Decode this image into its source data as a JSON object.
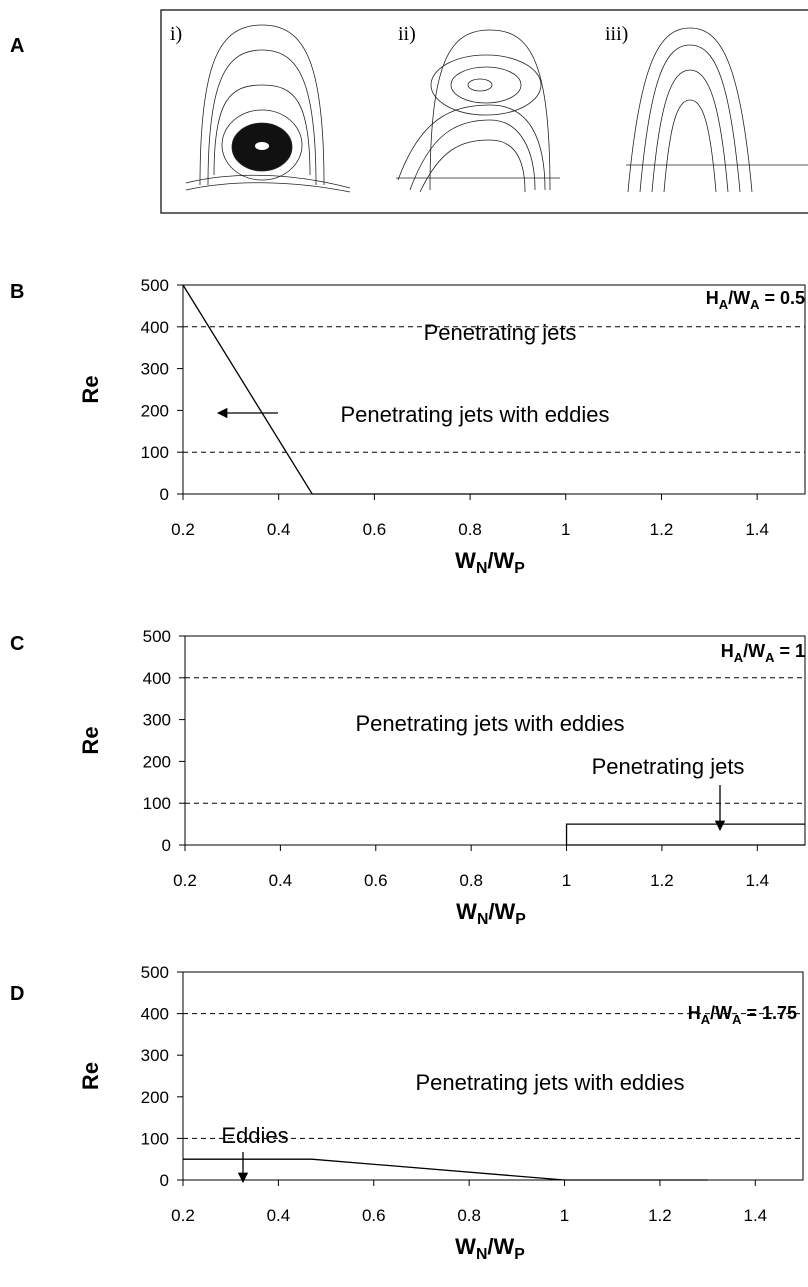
{
  "panel_a": {
    "label": "A",
    "images": [
      "i)",
      "ii)",
      "iii)"
    ]
  },
  "chart_data": [
    {
      "type": "line",
      "panel": "B",
      "title": [
        "H",
        "A",
        "/W",
        "A",
        " = 0.5"
      ],
      "xlabel": [
        "W",
        "N",
        "/W",
        "P"
      ],
      "ylabel": "Re",
      "xlim": [
        0.2,
        1.5
      ],
      "ylim": [
        0,
        500
      ],
      "xticks": [
        0.2,
        0.4,
        0.6,
        0.8,
        1,
        1.2,
        1.4
      ],
      "yticks": [
        0,
        100,
        200,
        300,
        400,
        500
      ],
      "reference_lines": [
        100,
        400
      ],
      "series": [
        {
          "color": "#000000",
          "x": [
            0.2,
            0.47,
            1.0
          ],
          "values": [
            500,
            0,
            0
          ]
        }
      ],
      "annotations": [
        "Penetrating jets",
        "Penetrating jets with eddies"
      ]
    },
    {
      "type": "line",
      "panel": "C",
      "title": [
        "H",
        "A",
        "/W",
        "A",
        " = 1"
      ],
      "xlabel": [
        "W",
        "N",
        "/W",
        "P"
      ],
      "ylabel": "Re",
      "xlim": [
        0.2,
        1.5
      ],
      "ylim": [
        0,
        500
      ],
      "xticks": [
        0.2,
        0.4,
        0.6,
        0.8,
        1,
        1.2,
        1.4
      ],
      "yticks": [
        0,
        100,
        200,
        300,
        400,
        500
      ],
      "reference_lines": [
        100,
        400
      ],
      "series": [
        {
          "color": "#000000",
          "x": [
            1.0,
            1.0,
            1.5
          ],
          "values": [
            0,
            50,
            50
          ]
        },
        {
          "color": "#000000",
          "x": [
            1.0,
            1.5
          ],
          "values": [
            0,
            0
          ]
        }
      ],
      "annotations": [
        "Penetrating jets with eddies",
        "Penetrating jets"
      ]
    },
    {
      "type": "line",
      "panel": "D",
      "title": [
        "H",
        "A",
        "/W",
        "A",
        " = 1.75"
      ],
      "xlabel": [
        "W",
        "N",
        "/W",
        "P"
      ],
      "ylabel": "Re",
      "xlim": [
        0.2,
        1.5
      ],
      "ylim": [
        0,
        500
      ],
      "xticks": [
        0.2,
        0.4,
        0.6,
        0.8,
        1,
        1.2,
        1.4
      ],
      "yticks": [
        0,
        100,
        200,
        300,
        400,
        500
      ],
      "reference_lines": [
        100,
        400
      ],
      "series": [
        {
          "color": "#000000",
          "x": [
            0.2,
            0.47,
            1.0,
            1.3
          ],
          "values": [
            50,
            50,
            0,
            0
          ]
        }
      ],
      "annotations": [
        "Penetrating jets with eddies",
        "Eddies"
      ]
    }
  ]
}
